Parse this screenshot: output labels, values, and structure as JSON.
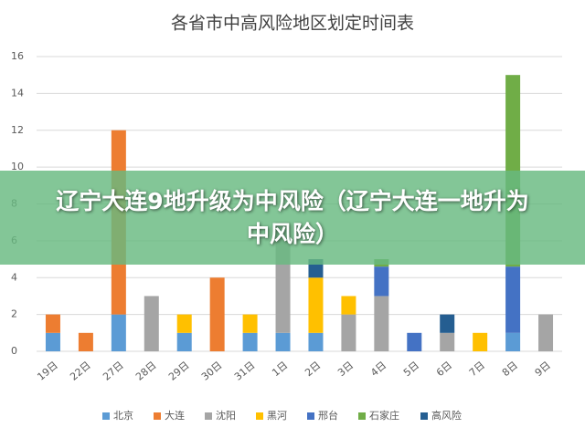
{
  "chart_data": {
    "type": "bar",
    "stacked": true,
    "title": "各省市中高风险地区划定时间表",
    "categories": [
      "19日",
      "22日",
      "27日",
      "28日",
      "29日",
      "30日",
      "31日",
      "1日",
      "2日",
      "3日",
      "4日",
      "5日",
      "6日",
      "7日",
      "8日",
      "9日"
    ],
    "series": [
      {
        "name": "北京",
        "color": "#5b9bd5",
        "values": [
          1,
          null,
          2,
          null,
          1,
          null,
          1,
          1,
          1,
          null,
          null,
          null,
          null,
          null,
          1,
          null
        ]
      },
      {
        "name": "大连",
        "color": "#ed7d31",
        "values": [
          1,
          1,
          10,
          null,
          null,
          4,
          null,
          null,
          null,
          null,
          null,
          null,
          null,
          null,
          null,
          null
        ]
      },
      {
        "name": "沈阳",
        "color": "#a5a5a5",
        "values": [
          null,
          null,
          null,
          3,
          null,
          null,
          null,
          6,
          null,
          2,
          3,
          null,
          1,
          null,
          null,
          2
        ]
      },
      {
        "name": "黑河",
        "color": "#ffc000",
        "values": [
          null,
          null,
          null,
          null,
          1,
          null,
          1,
          null,
          3,
          1,
          null,
          null,
          null,
          1,
          null,
          null
        ]
      },
      {
        "name": "邢台",
        "color": "#4472c4",
        "values": [
          null,
          null,
          null,
          null,
          null,
          null,
          null,
          null,
          null,
          null,
          1.6,
          1,
          null,
          null,
          3.6,
          null
        ]
      },
      {
        "name": "石家庄",
        "color": "#70ad47",
        "values": [
          null,
          null,
          null,
          null,
          null,
          null,
          null,
          null,
          null,
          null,
          0.4,
          null,
          null,
          null,
          10.4,
          null
        ]
      },
      {
        "name": "高风险",
        "color": "#255e91",
        "values": [
          null,
          null,
          null,
          null,
          null,
          null,
          null,
          null,
          1,
          null,
          null,
          null,
          1,
          null,
          null,
          null
        ]
      }
    ],
    "ylim": [
      0,
      16
    ],
    "yticks": [
      0,
      2,
      4,
      6,
      8,
      10,
      12,
      14,
      16
    ],
    "grid": true,
    "legend": "bottom"
  },
  "banner": {
    "text": "辽宁大连9地升级为中风险（辽宁大连一地升为中风险）"
  }
}
